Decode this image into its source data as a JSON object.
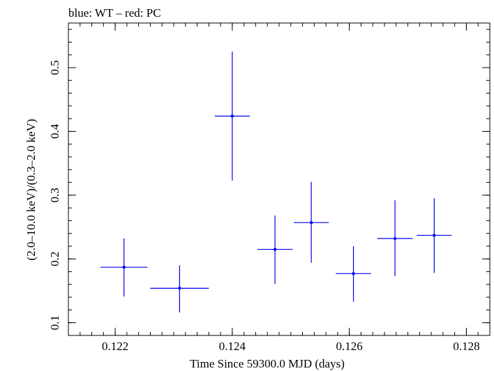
{
  "chart_data": {
    "type": "scatter",
    "title": "blue: WT – red: PC",
    "xlabel": "Time Since 59300.0 MJD (days)",
    "ylabel": "(2.0–10.0 keV)/(0.3–2.0 keV)",
    "xlim": [
      0.1212,
      0.1284
    ],
    "ylim": [
      0.08,
      0.57
    ],
    "x_ticks": [
      {
        "value": 0.122,
        "label": "0.122"
      },
      {
        "value": 0.124,
        "label": "0.124"
      },
      {
        "value": 0.126,
        "label": "0.126"
      },
      {
        "value": 0.128,
        "label": "0.128"
      }
    ],
    "y_ticks": [
      {
        "value": 0.1,
        "label": "0.1"
      },
      {
        "value": 0.2,
        "label": "0.2"
      },
      {
        "value": 0.3,
        "label": "0.3"
      },
      {
        "value": 0.4,
        "label": "0.4"
      },
      {
        "value": 0.5,
        "label": "0.5"
      }
    ],
    "x_minor_step": 0.0002,
    "y_minor_step": 0.02,
    "grid": false,
    "colors": {
      "WT": "#0000ee",
      "PC": "#ee0000"
    },
    "series": [
      {
        "name": "WT",
        "points": [
          {
            "x": 0.12215,
            "xerr": 0.0004,
            "y": 0.187,
            "yerr_lo": 0.046,
            "yerr_hi": 0.045
          },
          {
            "x": 0.1231,
            "xerr": 0.0005,
            "y": 0.154,
            "yerr_lo": 0.038,
            "yerr_hi": 0.036
          },
          {
            "x": 0.124,
            "xerr": 0.0003,
            "y": 0.424,
            "yerr_lo": 0.101,
            "yerr_hi": 0.101
          },
          {
            "x": 0.12473,
            "xerr": 0.0003,
            "y": 0.215,
            "yerr_lo": 0.054,
            "yerr_hi": 0.053
          },
          {
            "x": 0.12535,
            "xerr": 0.0003,
            "y": 0.257,
            "yerr_lo": 0.063,
            "yerr_hi": 0.064
          },
          {
            "x": 0.12607,
            "xerr": 0.0003,
            "y": 0.177,
            "yerr_lo": 0.044,
            "yerr_hi": 0.043
          },
          {
            "x": 0.12678,
            "xerr": 0.0003,
            "y": 0.232,
            "yerr_lo": 0.059,
            "yerr_hi": 0.06
          },
          {
            "x": 0.12745,
            "xerr": 0.0003,
            "y": 0.237,
            "yerr_lo": 0.059,
            "yerr_hi": 0.058
          }
        ]
      }
    ]
  }
}
